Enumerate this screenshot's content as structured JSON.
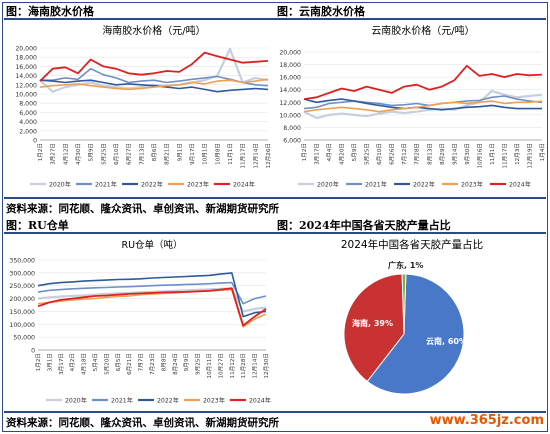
{
  "headers": {
    "c1": "图：海南胶水价格",
    "c2": "图：云南胶水价格",
    "c3": "图：RU仓单",
    "c4": "图：2024年中国各省天胶产量占比"
  },
  "sources": {
    "top": "资料来源：同花顺、隆众资讯、卓创资讯、新湖期货研究所",
    "bottom": "资料来源：同花顺、隆众资讯、卓创资讯、新湖期货研究所"
  },
  "watermark": "www.365jz.com",
  "colors": {
    "s2020": "#c7cfdf",
    "s2021": "#6f8fc7",
    "s2022": "#2e5a9c",
    "s2023": "#f0a050",
    "s2024": "#e02020",
    "pie_yunnan": "#4a78c8",
    "pie_hainan": "#c83232",
    "pie_guangdong": "#88b040"
  },
  "chart_data": [
    {
      "type": "line",
      "title": "海南胶水价格（元/吨）",
      "ylim": [
        0,
        20000
      ],
      "yticks": [
        "0",
        "2,000",
        "4,000",
        "6,000",
        "8,000",
        "10,000",
        "12,000",
        "14,000",
        "16,000",
        "18,000",
        "20,000"
      ],
      "xticks": [
        "1月2日",
        "3月27日",
        "4月12日",
        "4月30日",
        "5月9日",
        "5月25日",
        "6月10日",
        "6月27日",
        "7月13日",
        "8月6日",
        "8月21日",
        "9月1日",
        "9月17日",
        "10月1日",
        "10月8日",
        "11月1日",
        "11月17日",
        "12月14日",
        "12月26日"
      ],
      "legend": [
        "2020年",
        "2021年",
        "2022年",
        "2023年",
        "2024年"
      ],
      "series": [
        {
          "name": "2020年",
          "values": [
            13000,
            10500,
            11500,
            12000,
            12500,
            11800,
            11500,
            11200,
            11500,
            12000,
            11800,
            12000,
            12500,
            13000,
            14000,
            19800,
            12500,
            13500,
            13000
          ]
        },
        {
          "name": "2021年",
          "values": [
            13000,
            13000,
            13500,
            13200,
            15500,
            14200,
            13500,
            12500,
            12800,
            13000,
            12500,
            12800,
            13200,
            13500,
            13800,
            13200,
            12500,
            12000,
            11800
          ]
        },
        {
          "name": "2022年",
          "values": [
            13000,
            12800,
            12500,
            12800,
            13000,
            12500,
            12000,
            12200,
            12000,
            11800,
            11500,
            11200,
            11500,
            11000,
            10500,
            10800,
            11000,
            11200,
            11000
          ]
        },
        {
          "name": "2023年",
          "values": [
            11500,
            11800,
            12000,
            12200,
            11800,
            11500,
            11200,
            11000,
            11200,
            11500,
            11800,
            12000,
            12500,
            12200,
            12800,
            13000,
            12500,
            12800,
            13200
          ]
        },
        {
          "name": "2024年",
          "values": [
            12800,
            15500,
            15800,
            14500,
            17500,
            16000,
            15500,
            14500,
            14200,
            14500,
            15000,
            14800,
            16500,
            19000,
            18200,
            17500,
            16800,
            17000,
            17200
          ]
        }
      ]
    },
    {
      "type": "line",
      "title": "云南胶水价格（元/吨）",
      "ylim": [
        6000,
        20000
      ],
      "yticks": [
        "6,000",
        "8,000",
        "10,000",
        "12,000",
        "14,000",
        "16,000",
        "18,000",
        "20,000"
      ],
      "xticks": [
        "1月2日",
        "3月17日",
        "4月4日",
        "4月20日",
        "5月9日",
        "5月25日",
        "6月10日",
        "6月26日",
        "7月12日",
        "7月28日",
        "8月13日",
        "8月29日",
        "9月14日",
        "9月30日",
        "10月16日",
        "11月1日",
        "11月17日",
        "12月3日",
        "12月19日",
        "1月4日"
      ],
      "legend": [
        "2020年",
        "2021年",
        "2022年",
        "2023年",
        "2024年"
      ],
      "series": [
        {
          "name": "2020年",
          "values": [
            10500,
            9500,
            10000,
            10200,
            10000,
            9800,
            10200,
            10500,
            10300,
            10500,
            10800,
            11000,
            10800,
            11500,
            12000,
            13800,
            13200,
            12800,
            13000,
            13200
          ]
        },
        {
          "name": "2021年",
          "values": [
            11000,
            11200,
            11800,
            12000,
            12200,
            12000,
            11800,
            11500,
            11600,
            11800,
            11500,
            11800,
            12000,
            12200,
            12300,
            12800,
            13000,
            12500,
            12200,
            12000
          ]
        },
        {
          "name": "2022年",
          "values": [
            12500,
            12000,
            12300,
            12500,
            12200,
            11800,
            11500,
            11200,
            11000,
            11200,
            11000,
            10800,
            11000,
            11200,
            11300,
            11500,
            11200,
            11000,
            11000,
            11000
          ]
        },
        {
          "name": "2023年",
          "values": [
            10500,
            10800,
            11000,
            11200,
            11000,
            10800,
            10500,
            10800,
            11000,
            11200,
            11500,
            11800,
            12000,
            11800,
            12000,
            12200,
            11800,
            12000,
            12000,
            12200
          ]
        },
        {
          "name": "2024年",
          "values": [
            12500,
            12800,
            13500,
            14200,
            13800,
            14500,
            14000,
            13500,
            14500,
            14800,
            14000,
            14500,
            15500,
            17800,
            16200,
            16500,
            16000,
            16500,
            16300,
            16400
          ]
        }
      ]
    },
    {
      "type": "line",
      "title": "RU仓单（吨）",
      "ylim": [
        0,
        350000
      ],
      "yticks": [
        "0",
        "50,000",
        "100,000",
        "150,000",
        "200,000",
        "250,000",
        "300,000",
        "350,000"
      ],
      "xticks": [
        "1月2日",
        "3月1日",
        "3月17日",
        "4月2日",
        "4月18日",
        "5月4日",
        "5月20日",
        "6月5日",
        "6月21日",
        "7月7日",
        "7月23日",
        "8月8日",
        "8月24日",
        "9月9日",
        "9月25日",
        "10月11日",
        "10月27日",
        "11月12日",
        "11月28日",
        "12月14日",
        "12月30日"
      ],
      "legend": [
        "2020年",
        "2021年",
        "2022年",
        "2023年",
        "2024年"
      ],
      "series": [
        {
          "name": "2020年",
          "values": [
            200000,
            205000,
            208000,
            210000,
            212000,
            215000,
            218000,
            220000,
            222000,
            224000,
            226000,
            228000,
            230000,
            232000,
            234000,
            236000,
            238000,
            240000,
            150000,
            160000,
            165000
          ]
        },
        {
          "name": "2021年",
          "values": [
            225000,
            232000,
            235000,
            238000,
            240000,
            242000,
            243000,
            245000,
            246000,
            248000,
            250000,
            252000,
            253000,
            255000,
            256000,
            258000,
            260000,
            262000,
            180000,
            200000,
            210000
          ]
        },
        {
          "name": "2022年",
          "values": [
            250000,
            258000,
            262000,
            265000,
            268000,
            270000,
            272000,
            274000,
            275000,
            277000,
            280000,
            282000,
            284000,
            286000,
            288000,
            290000,
            295000,
            300000,
            130000,
            145000,
            150000
          ]
        },
        {
          "name": "2023年",
          "values": [
            180000,
            185000,
            190000,
            195000,
            198000,
            200000,
            205000,
            208000,
            210000,
            215000,
            218000,
            220000,
            222000,
            225000,
            228000,
            230000,
            232000,
            235000,
            90000,
            120000,
            140000
          ]
        },
        {
          "name": "2024年",
          "values": [
            170000,
            185000,
            195000,
            200000,
            205000,
            210000,
            212000,
            215000,
            218000,
            220000,
            222000,
            224000,
            225000,
            226000,
            228000,
            230000,
            235000,
            240000,
            95000,
            130000,
            160000
          ]
        }
      ]
    },
    {
      "type": "pie",
      "title": "2024年中国各省天胶产量占比",
      "slices": [
        {
          "name": "云南",
          "value": 60,
          "label": "云南, 60%"
        },
        {
          "name": "海南",
          "value": 39,
          "label": "海南, 39%"
        },
        {
          "name": "广东",
          "value": 1,
          "label": "广东, 1%"
        }
      ]
    }
  ]
}
